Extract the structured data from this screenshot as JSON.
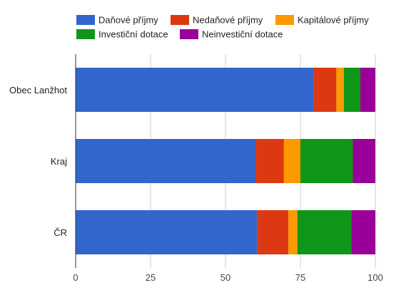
{
  "chart_data": {
    "type": "bar",
    "orientation": "horizontal",
    "stacked": true,
    "categories": [
      "Obec Lanžhot",
      "Kraj",
      "ČR"
    ],
    "series": [
      {
        "name": "Daňové příjmy",
        "color": "#3366cc",
        "values": [
          79.5,
          60,
          60.5
        ]
      },
      {
        "name": "Nedaňové příjmy",
        "color": "#dc3912",
        "values": [
          7.5,
          9.5,
          10.5
        ]
      },
      {
        "name": "Kapitálové příjmy",
        "color": "#ff9900",
        "values": [
          2.5,
          5.5,
          3
        ]
      },
      {
        "name": "Investiční dotace",
        "color": "#109618",
        "values": [
          5.5,
          17.5,
          18
        ]
      },
      {
        "name": "Neinvestiční dotace",
        "color": "#990099",
        "values": [
          5,
          7.5,
          8
        ]
      }
    ],
    "xlim": [
      0,
      100
    ],
    "xticks": [
      "0",
      "25",
      "50",
      "75",
      "100"
    ],
    "grid": true,
    "legend_position": "top"
  }
}
